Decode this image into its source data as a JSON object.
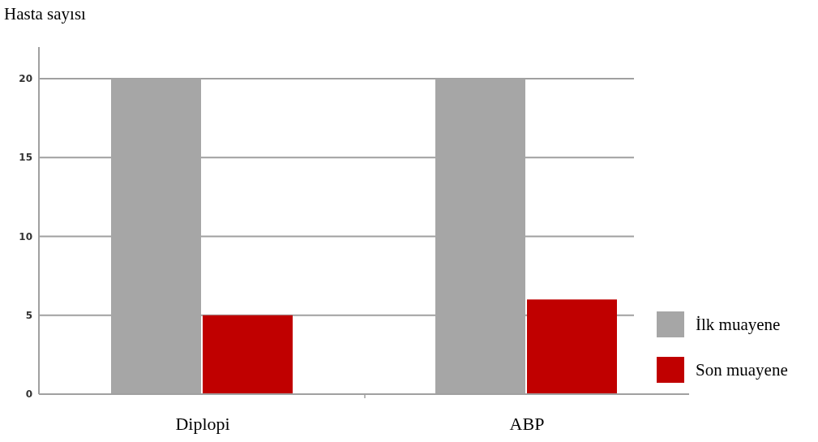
{
  "chart_data": {
    "type": "bar",
    "ylabel": "Hasta sayısı",
    "categories": [
      "Diplopi",
      "ABP"
    ],
    "series": [
      {
        "name": "İlk muayene",
        "color": "#a6a6a6",
        "values": [
          20,
          20
        ]
      },
      {
        "name": "Son muayene",
        "color": "#c00000",
        "values": [
          5,
          6
        ]
      }
    ],
    "ylim": [
      0,
      22
    ],
    "yticks": [
      0,
      5,
      10,
      15,
      20
    ],
    "grid": "y",
    "legend": "right"
  }
}
